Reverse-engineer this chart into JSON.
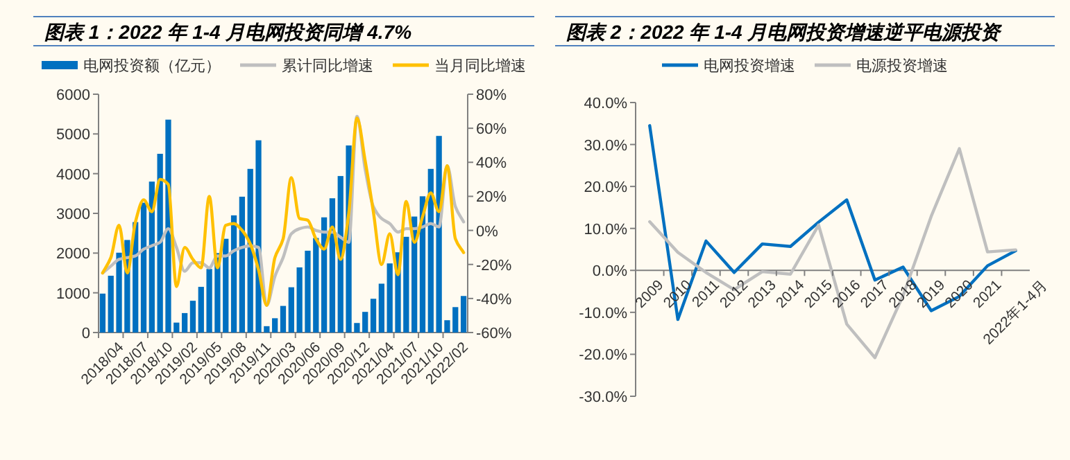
{
  "chart_data": [
    {
      "type": "bar",
      "title": "图表 1：2022 年 1-4 月电网投资同增 4.7%",
      "legend": "top",
      "categories": [
        "2018/04",
        null,
        null,
        "2018/07",
        null,
        null,
        "2018/10",
        null,
        null,
        "2019/02",
        null,
        null,
        "2019/05",
        null,
        null,
        "2019/08",
        null,
        null,
        "2019/11",
        null,
        null,
        "2020/03",
        null,
        null,
        "2020/06",
        null,
        null,
        "2020/09",
        null,
        null,
        "2020/12",
        null,
        null,
        "2021/04",
        null,
        null,
        "2021/07",
        null,
        null,
        "2021/10",
        null,
        null,
        "2022/02",
        null,
        null
      ],
      "ylim": [
        0,
        6000
      ],
      "yticks": [
        0,
        1000,
        2000,
        3000,
        4000,
        5000,
        6000
      ],
      "y2lim": [
        -60,
        80
      ],
      "y2ticks": [
        {
          "value": -60,
          "label": "-60%"
        },
        {
          "value": -40,
          "label": "-40%"
        },
        {
          "value": -20,
          "label": "-20%"
        },
        {
          "value": 0,
          "label": "0%"
        },
        {
          "value": 20,
          "label": "20%"
        },
        {
          "value": 40,
          "label": "40%"
        },
        {
          "value": 60,
          "label": "60%"
        },
        {
          "value": 80,
          "label": "80%"
        }
      ],
      "series": [
        {
          "name": "电网投资额（亿元）",
          "color": "#0070c0",
          "values": [
            980,
            1430,
            2010,
            2330,
            2780,
            3270,
            3800,
            4500,
            5360,
            250,
            490,
            800,
            1150,
            1600,
            2000,
            2360,
            2950,
            3420,
            4120,
            4840,
            160,
            360,
            670,
            1140,
            1640,
            2060,
            2380,
            2900,
            3380,
            3940,
            4710,
            240,
            520,
            850,
            1230,
            1740,
            2020,
            2410,
            2920,
            3430,
            4120,
            4950,
            310,
            640,
            920
          ]
        },
        {
          "name": "累计同比增速",
          "type": "line",
          "axis": "y2",
          "color": "#bfbfbf",
          "values": [
            -25,
            -21,
            -17,
            -16,
            -15,
            -11,
            -9,
            -7,
            1,
            -10,
            -24,
            -19,
            -19,
            -22,
            -15,
            -15,
            -12,
            -10,
            -9,
            -10,
            -44,
            -27,
            -16,
            -2,
            1,
            2,
            0,
            -1,
            -1,
            -4,
            -7,
            67,
            36,
            14,
            7,
            4,
            -1,
            1,
            1,
            2,
            4,
            2,
            38,
            14,
            5
          ]
        },
        {
          "name": "当月同比增速",
          "type": "line",
          "axis": "y2",
          "color": "#ffc000",
          "values": [
            -25,
            -16,
            3,
            -25,
            5,
            18,
            11,
            30,
            27,
            -33,
            -10,
            -17,
            -22,
            20,
            -22,
            3,
            4,
            0,
            -8,
            -23,
            -44,
            -16,
            -5,
            31,
            7,
            6,
            -5,
            -11,
            2,
            -17,
            10,
            66,
            41,
            11,
            -20,
            -2,
            -26,
            17,
            -7,
            8,
            22,
            11,
            38,
            -5,
            -13
          ]
        }
      ]
    },
    {
      "type": "line",
      "title": "图表 2：2022 年 1-4 月电网投资增速逆平电源投资",
      "legend": "top",
      "categories": [
        "2009",
        "2010",
        "2011",
        "2012",
        "2013",
        "2014",
        "2015",
        "2016",
        "2017",
        "2018",
        "2019",
        "2020",
        "2021",
        "2022年1-4月"
      ],
      "ylim": [
        -30,
        40
      ],
      "yticks": [
        {
          "value": -30,
          "label": "-30.0%"
        },
        {
          "value": -20,
          "label": "-20.0%"
        },
        {
          "value": -10,
          "label": "-10.0%"
        },
        {
          "value": 0,
          "label": "0.0%"
        },
        {
          "value": 10,
          "label": "10.0%"
        },
        {
          "value": 20,
          "label": "20.0%"
        },
        {
          "value": 30,
          "label": "30.0%"
        },
        {
          "value": 40,
          "label": "40.0%"
        }
      ],
      "series": [
        {
          "name": "电网投资增速",
          "color": "#0070c0",
          "values": [
            34.5,
            -11.7,
            7.0,
            -0.5,
            6.3,
            5.7,
            11.5,
            16.8,
            -2.3,
            0.8,
            -9.6,
            -6.2,
            1.1,
            4.7
          ]
        },
        {
          "name": "电源投资增速",
          "color": "#bfbfbf",
          "values": [
            11.6,
            4.3,
            -0.5,
            -4.6,
            -0.3,
            -0.9,
            10.8,
            -12.8,
            -20.8,
            -6.0,
            12.9,
            29.0,
            4.4,
            4.9
          ]
        }
      ]
    }
  ]
}
